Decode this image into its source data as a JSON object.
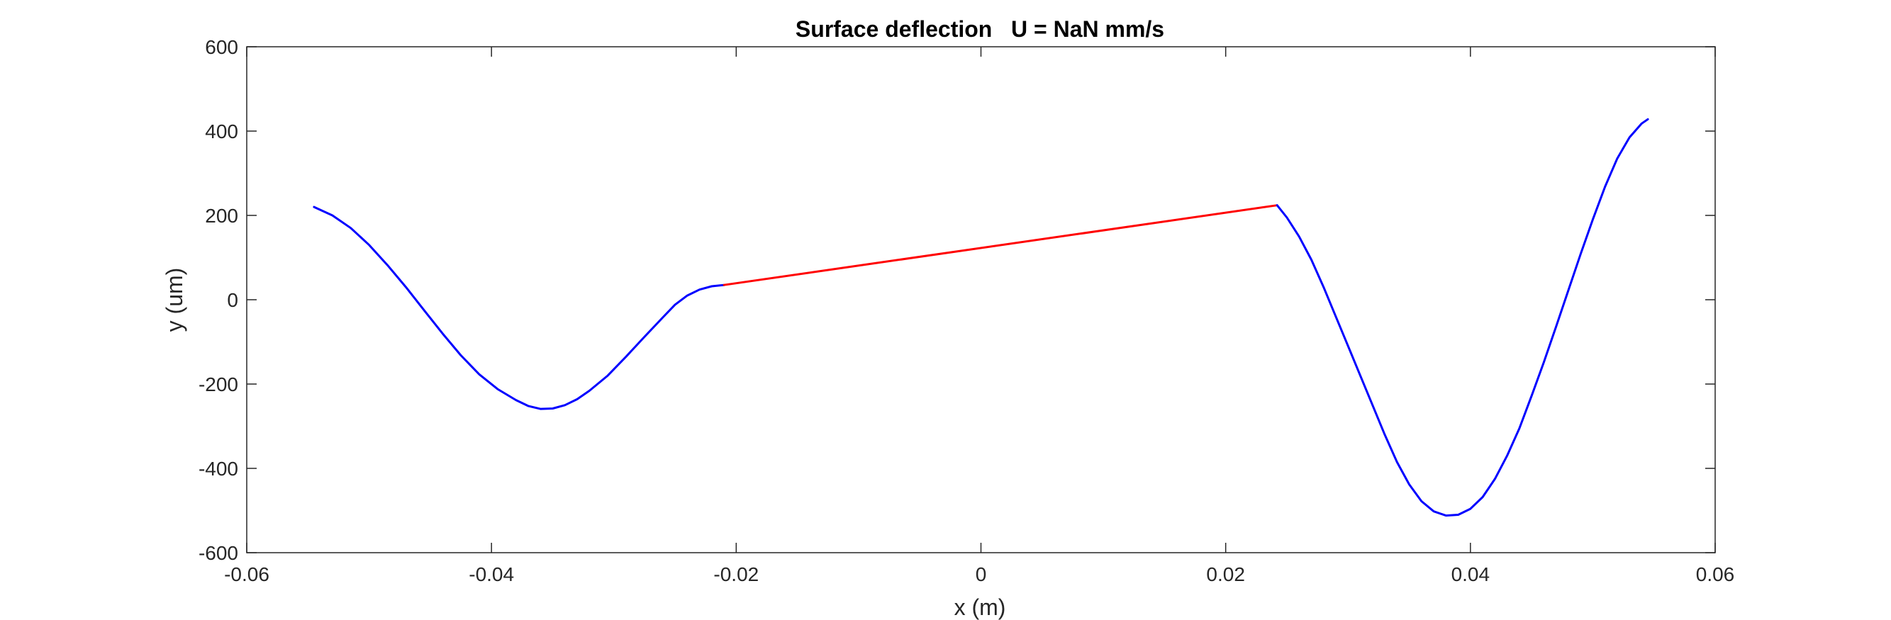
{
  "chart_data": {
    "type": "line",
    "title": "Surface deflection   U = NaN mm/s",
    "xlabel": "x (m)",
    "ylabel": "y (um)",
    "xlim": [
      -0.06,
      0.06
    ],
    "ylim": [
      -600,
      600
    ],
    "x_ticks": [
      "-0.06",
      "-0.04",
      "-0.02",
      "0",
      "0.02",
      "0.04",
      "0.06"
    ],
    "y_ticks": [
      "600",
      "400",
      "200",
      "0",
      "-200",
      "-400",
      "-600"
    ],
    "grid": false,
    "box": true,
    "series": [
      {
        "color": "#0000ff",
        "points": [
          [
            -0.0545,
            220
          ],
          [
            -0.053,
            200
          ],
          [
            -0.0515,
            170
          ],
          [
            -0.05,
            130
          ],
          [
            -0.0485,
            82
          ],
          [
            -0.047,
            30
          ],
          [
            -0.0455,
            -25
          ],
          [
            -0.044,
            -80
          ],
          [
            -0.0425,
            -132
          ],
          [
            -0.041,
            -177
          ],
          [
            -0.0395,
            -212
          ],
          [
            -0.038,
            -238
          ],
          [
            -0.037,
            -252
          ],
          [
            -0.036,
            -259
          ],
          [
            -0.035,
            -258
          ],
          [
            -0.034,
            -250
          ],
          [
            -0.033,
            -236
          ],
          [
            -0.032,
            -216
          ],
          [
            -0.0305,
            -180
          ],
          [
            -0.029,
            -135
          ],
          [
            -0.0275,
            -88
          ],
          [
            -0.026,
            -42
          ],
          [
            -0.025,
            -12
          ],
          [
            -0.024,
            10
          ],
          [
            -0.023,
            24
          ],
          [
            -0.022,
            32
          ],
          [
            -0.021,
            35
          ]
        ]
      },
      {
        "color": "#ff0000",
        "points": [
          [
            -0.021,
            35
          ],
          [
            0.0242,
            224
          ]
        ]
      },
      {
        "color": "#0000ff",
        "points": [
          [
            0.0242,
            224
          ],
          [
            0.025,
            195
          ],
          [
            0.026,
            150
          ],
          [
            0.027,
            95
          ],
          [
            0.028,
            30
          ],
          [
            0.029,
            -40
          ],
          [
            0.03,
            -110
          ],
          [
            0.031,
            -180
          ],
          [
            0.032,
            -250
          ],
          [
            0.033,
            -320
          ],
          [
            0.034,
            -385
          ],
          [
            0.035,
            -438
          ],
          [
            0.036,
            -478
          ],
          [
            0.037,
            -502
          ],
          [
            0.038,
            -512
          ],
          [
            0.039,
            -510
          ],
          [
            0.04,
            -496
          ],
          [
            0.041,
            -468
          ],
          [
            0.042,
            -425
          ],
          [
            0.043,
            -370
          ],
          [
            0.044,
            -305
          ],
          [
            0.045,
            -228
          ],
          [
            0.046,
            -148
          ],
          [
            0.047,
            -64
          ],
          [
            0.048,
            22
          ],
          [
            0.049,
            108
          ],
          [
            0.05,
            190
          ],
          [
            0.051,
            268
          ],
          [
            0.052,
            335
          ],
          [
            0.053,
            385
          ],
          [
            0.054,
            418
          ],
          [
            0.0545,
            428
          ]
        ]
      }
    ]
  }
}
